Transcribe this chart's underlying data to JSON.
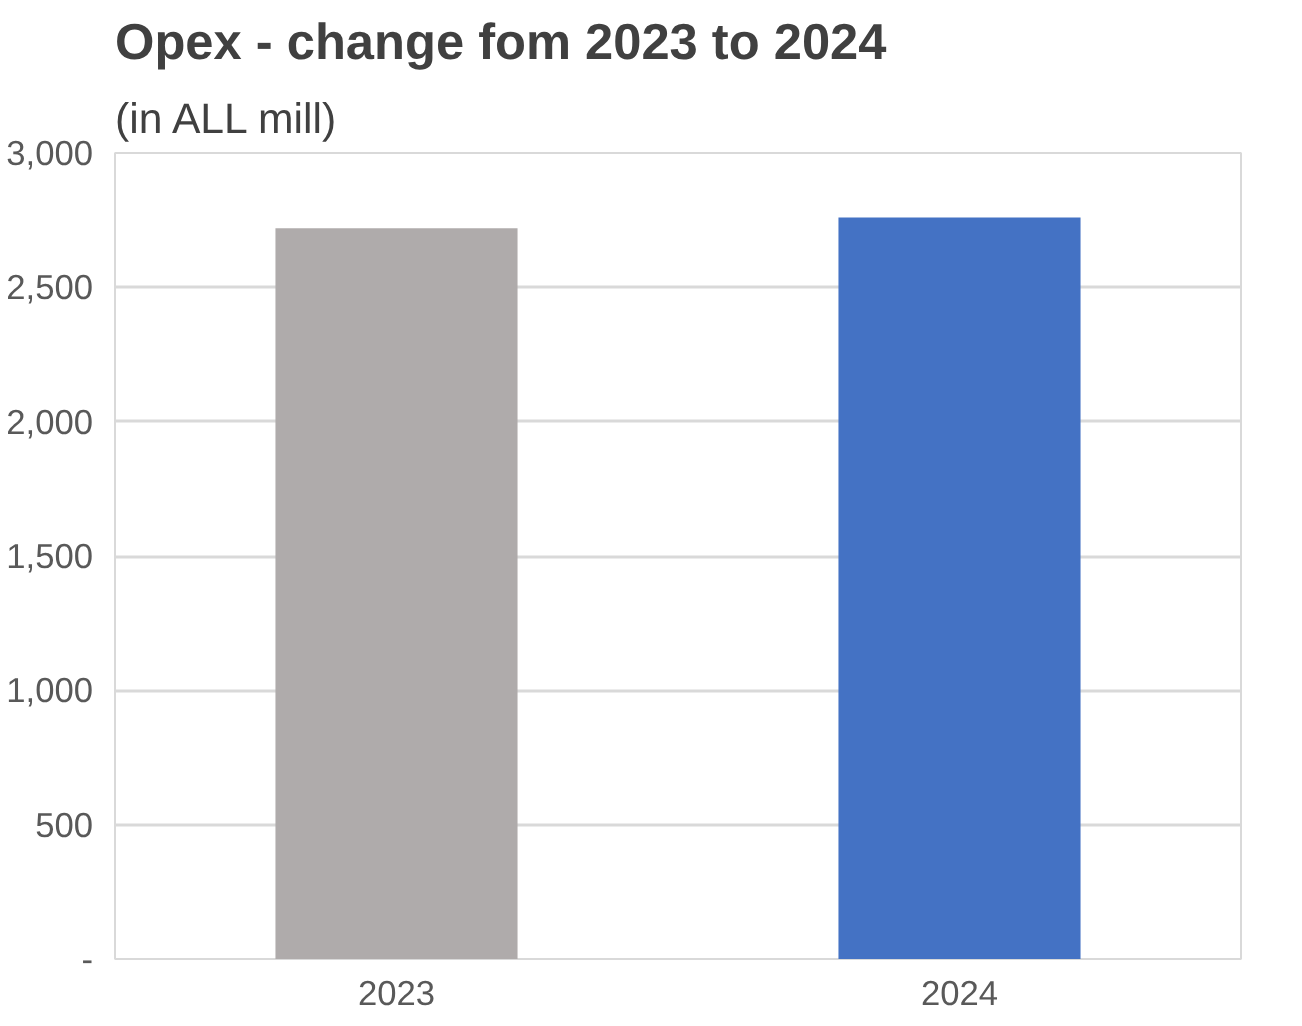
{
  "chart_data": {
    "type": "bar",
    "title": "Opex - change fom 2023 to 2024",
    "subtitle": "(in ALL mill)",
    "categories": [
      "2023",
      "2024"
    ],
    "values": [
      2720,
      2760
    ],
    "colors": [
      "#afabab",
      "#4472c4"
    ],
    "ylim": [
      0,
      3000
    ],
    "yticks": [
      {
        "value": 0,
        "label": "-"
      },
      {
        "value": 500,
        "label": "500"
      },
      {
        "value": 1000,
        "label": "1,000"
      },
      {
        "value": 1500,
        "label": "1,500"
      },
      {
        "value": 2000,
        "label": "2,000"
      },
      {
        "value": 2500,
        "label": "2,500"
      },
      {
        "value": 3000,
        "label": "3,000"
      }
    ],
    "grid": "y"
  }
}
